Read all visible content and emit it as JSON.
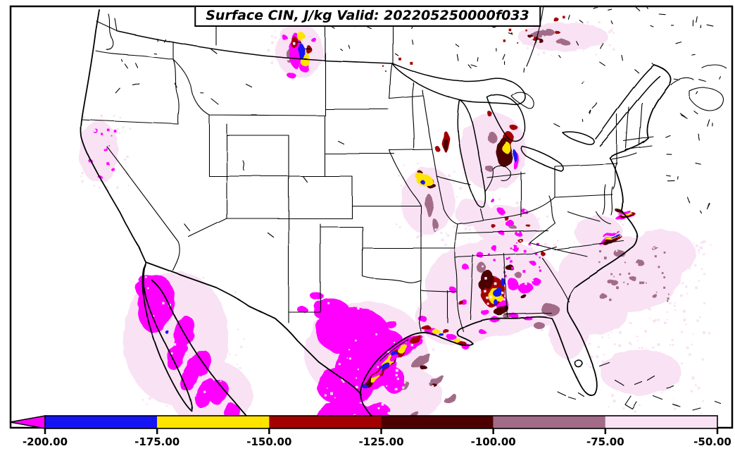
{
  "title": "Surface CIN, J/kg Valid: 202205250000f033",
  "variable": "Surface CIN",
  "unit": "J/kg",
  "valid_stamp": "202205250000f033",
  "colorbar": {
    "tick_labels": [
      "-200.00",
      "-175.00",
      "-150.00",
      "-125.00",
      "-100.00",
      "-75.00",
      "-50.00"
    ],
    "tick_values": [
      -200,
      -175,
      -150,
      -125,
      -100,
      -75,
      -50
    ],
    "arrow": {
      "palette_key": "magenta",
      "meaning": "CIN below -200 J/kg"
    },
    "segments": [
      {
        "from": -200,
        "to": -175,
        "palette_key": "blue"
      },
      {
        "from": -175,
        "to": -150,
        "palette_key": "yellow"
      },
      {
        "from": -150,
        "to": -125,
        "palette_key": "red"
      },
      {
        "from": -125,
        "to": -100,
        "palette_key": "maroon"
      },
      {
        "from": -100,
        "to": -75,
        "palette_key": "mauve"
      },
      {
        "from": -75,
        "to": -50,
        "palette_key": "pale_pink"
      }
    ]
  },
  "palette": {
    "magenta": "#FF00FF",
    "blue": "#1414F5",
    "yellow": "#FFE400",
    "red": "#A30000",
    "maroon": "#4D0000",
    "mauve": "#A26C88",
    "pale_pink": "#F8E2F4",
    "line_color": "#000000",
    "background": "#FFFFFF"
  },
  "map_data": {
    "type": "filled-contour weather map",
    "extent": "Contiguous United States, northern Mexico, southern Canada, western Atlantic",
    "regions": [
      {
        "area": "Northwestern Mexico (Sonora / Sinaloa / Chihuahua)",
        "value": "CIN < -200 (magenta), large area"
      },
      {
        "area": "South Texas, Texas Gulf coast, northeastern Mexico",
        "value": "CIN < -200 with banded -200 to -100 strips along coastline"
      },
      {
        "area": "Central Alabama / western Georgia",
        "value": "multicolor pocket, -200 to -100"
      },
      {
        "area": "Eastern Lake Michigan shore / Michigan",
        "value": "-125 to -100 core with -175 to -150 spot"
      },
      {
        "area": "Southeast Iowa / Illinois border (Mississippi River)",
        "value": "-175 to -150 pocket"
      },
      {
        "area": "Montana / Saskatchewan border",
        "value": "mixed pocket down to < -200"
      },
      {
        "area": "North Carolina / Virginia coast (Outer Banks)",
        "value": "narrow banded coastal streaks"
      },
      {
        "area": "Kentucky and Tennessee",
        "value": "scattered small pockets"
      },
      {
        "area": "Atlantic off the Southeast coast",
        "value": "-75 to -50 with -100 to -75 speckles"
      },
      {
        "area": "Southern Quebec",
        "value": "-75 to -50 streak with darker specks"
      },
      {
        "area": "Northern California",
        "value": "weak scattered pockets"
      }
    ]
  }
}
